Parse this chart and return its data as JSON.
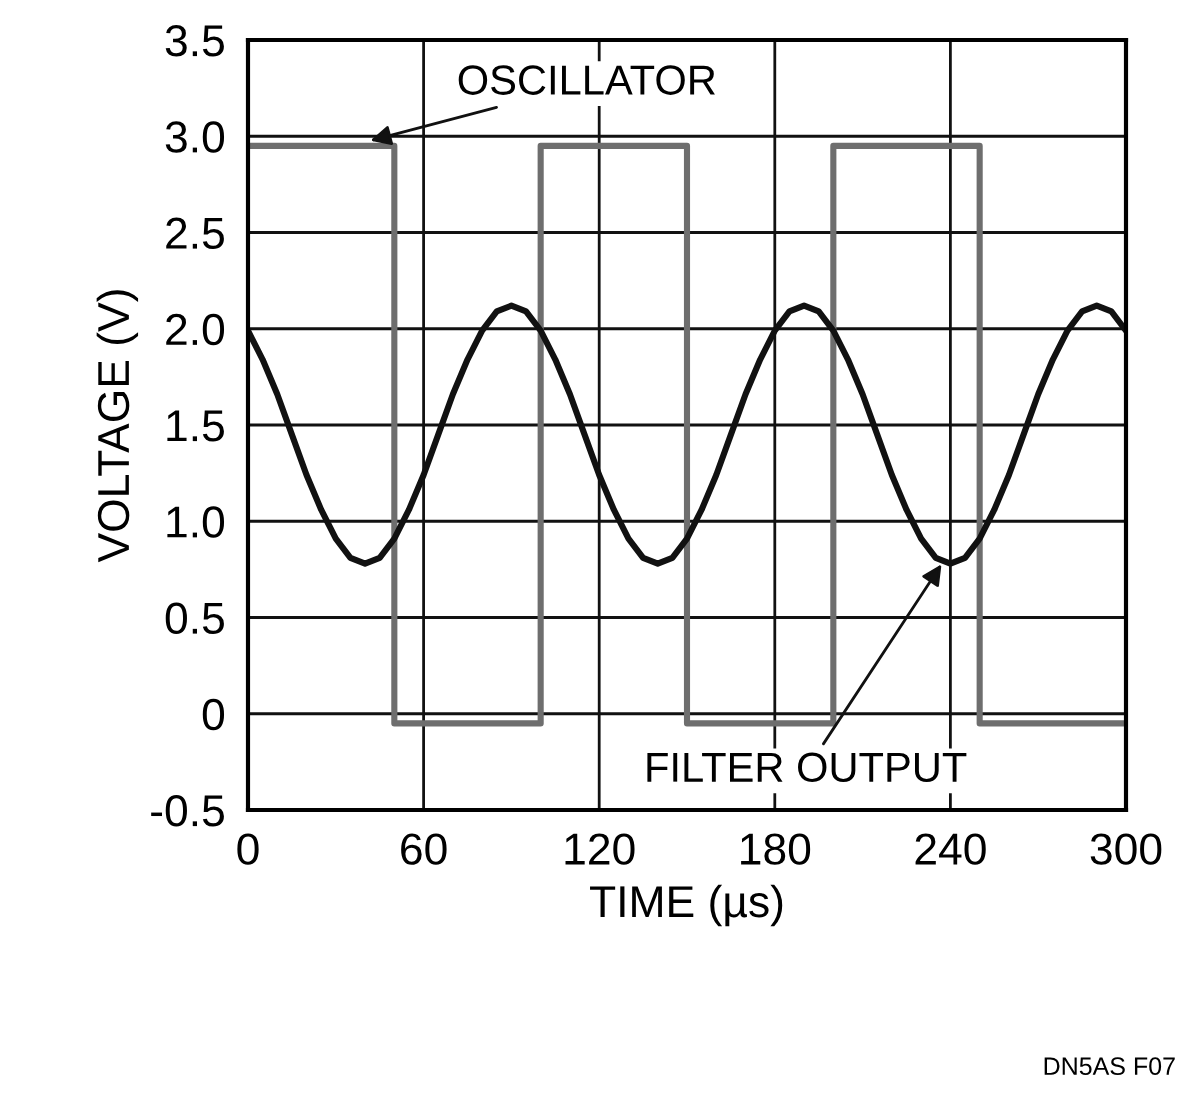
{
  "chart_data": {
    "type": "line",
    "xlabel": "TIME (µs)",
    "ylabel": "VOLTAGE (V)",
    "xlim": [
      0,
      300
    ],
    "xticks": [
      0,
      60,
      120,
      180,
      240,
      300
    ],
    "ylim": [
      -0.5,
      3.5
    ],
    "yticks": [
      -0.5,
      0,
      0.5,
      {
        "value": 1,
        "label": "1.0"
      },
      1.5,
      {
        "value": 2,
        "label": "2.0"
      },
      2.5,
      {
        "value": 3,
        "label": "3.0"
      },
      3.5
    ],
    "grid": true,
    "legend": false,
    "marker": "none",
    "line_style": "solid",
    "series": [
      {
        "color": "#6e6e6e",
        "x": [
          0,
          50,
          50,
          100,
          100,
          150,
          150,
          200,
          200,
          250,
          250,
          300
        ],
        "values": [
          2.95,
          2.95,
          -0.05,
          -0.05,
          2.95,
          2.95,
          -0.05,
          -0.05,
          2.95,
          2.95,
          -0.05,
          -0.05
        ]
      },
      {
        "color": "#111111",
        "x": [
          0,
          5,
          10,
          15,
          20,
          25,
          30,
          35,
          40,
          45,
          50,
          55,
          60,
          65,
          70,
          75,
          80,
          85,
          90,
          95,
          100,
          105,
          110,
          115,
          120,
          125,
          130,
          135,
          140,
          145,
          150,
          155,
          160,
          165,
          170,
          175,
          180,
          185,
          190,
          195,
          200,
          205,
          210,
          215,
          220,
          225,
          230,
          235,
          240,
          245,
          250,
          255,
          260,
          265,
          270,
          275,
          280,
          285,
          290,
          295,
          300
        ],
        "values": [
          1.99,
          1.84,
          1.66,
          1.45,
          1.24,
          1.06,
          0.91,
          0.81,
          0.78,
          0.81,
          0.91,
          1.06,
          1.24,
          1.45,
          1.66,
          1.84,
          1.99,
          2.09,
          2.12,
          2.09,
          1.99,
          1.84,
          1.66,
          1.45,
          1.24,
          1.06,
          0.91,
          0.81,
          0.78,
          0.81,
          0.91,
          1.06,
          1.24,
          1.45,
          1.66,
          1.84,
          1.99,
          2.09,
          2.12,
          2.09,
          1.99,
          1.84,
          1.66,
          1.45,
          1.24,
          1.06,
          0.91,
          0.81,
          0.78,
          0.81,
          0.91,
          1.06,
          1.24,
          1.45,
          1.66,
          1.84,
          1.99,
          2.09,
          2.12,
          2.09,
          1.99
        ]
      }
    ],
    "annotations": [
      {
        "text": "OSCILLATOR",
        "x": 40,
        "y": 2.97
      },
      {
        "text": "FILTER OUTPUT",
        "x": 238,
        "y": 0.8
      },
      "DN5AS F07"
    ]
  }
}
